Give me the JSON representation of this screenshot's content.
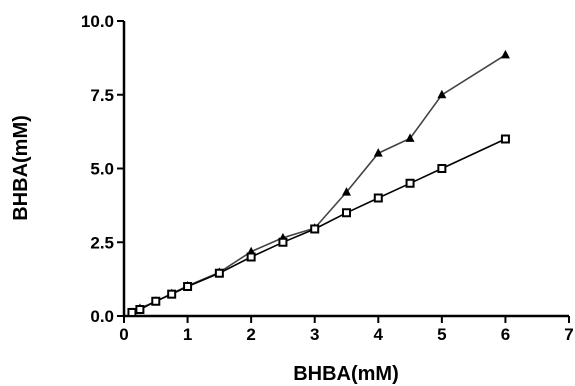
{
  "chart_data": {
    "type": "line",
    "title": "",
    "xlabel": "BHBA(mM)",
    "ylabel": "BHBA(mM)",
    "xlim": [
      0,
      7
    ],
    "ylim": [
      0,
      10
    ],
    "x_ticks": [
      "0",
      "1",
      "2",
      "3",
      "4",
      "5",
      "6",
      "7"
    ],
    "y_ticks": [
      "0.0",
      "2.5",
      "5.0",
      "7.5",
      "10.0"
    ],
    "grid": false,
    "legend": "none",
    "series": [
      {
        "marker": "triangle",
        "color": "#444444",
        "x": [
          0.125,
          0.25,
          0.5,
          0.75,
          1,
          1.5,
          2,
          2.5,
          3,
          3.5,
          4,
          4.5,
          5,
          6
        ],
        "y": [
          0.12,
          0.26,
          0.5,
          0.76,
          1.02,
          1.48,
          2.18,
          2.65,
          2.98,
          4.2,
          5.52,
          6.02,
          7.5,
          8.85
        ]
      },
      {
        "marker": "square-open",
        "color": "#000000",
        "x": [
          0.125,
          0.25,
          0.5,
          0.75,
          1,
          1.5,
          2,
          2.5,
          3,
          3.5,
          4,
          4.5,
          5,
          6
        ],
        "y": [
          0.12,
          0.22,
          0.5,
          0.74,
          1.0,
          1.45,
          2.0,
          2.5,
          2.95,
          3.5,
          4.0,
          4.5,
          5.0,
          6.0
        ]
      }
    ]
  }
}
